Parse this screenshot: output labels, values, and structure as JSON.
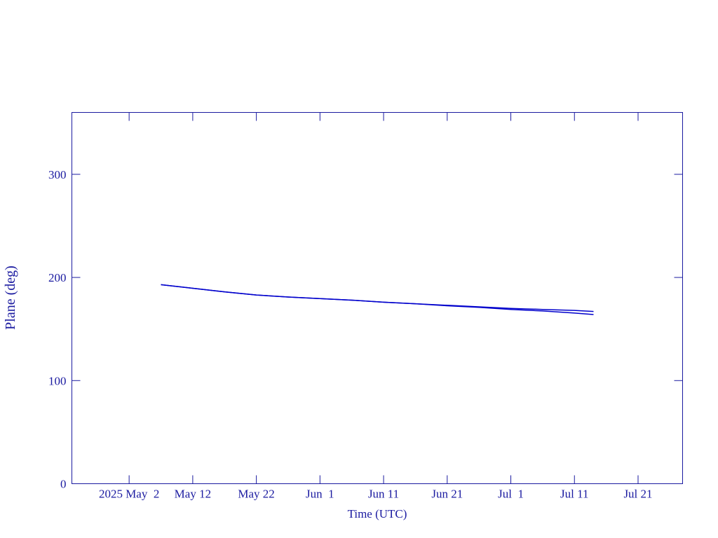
{
  "chart_data": {
    "type": "line",
    "xlabel": "Time (UTC)",
    "ylabel": "Plane (deg)",
    "x": [
      "2025-05-07",
      "2025-05-12",
      "2025-05-17",
      "2025-05-22",
      "2025-05-27",
      "2025-06-01",
      "2025-06-06",
      "2025-06-11",
      "2025-06-16",
      "2025-06-21",
      "2025-06-26",
      "2025-07-01",
      "2025-07-06",
      "2025-07-11",
      "2025-07-14"
    ],
    "series": [
      {
        "color": "#0000cc",
        "values": [
          193,
          189.5,
          186,
          183,
          181,
          179.5,
          178,
          176,
          174.5,
          173,
          171.5,
          170,
          169,
          168,
          167
        ]
      },
      {
        "color": "#0000cc",
        "values": [
          193,
          189.5,
          186,
          183,
          181,
          179.5,
          178,
          176,
          174.5,
          172.5,
          171,
          169,
          167.5,
          165.5,
          164
        ]
      }
    ],
    "xlim": [
      "2025-04-23",
      "2025-07-28"
    ],
    "xticks": [
      {
        "value": "2025-05-02",
        "label": "2025 May  2"
      },
      {
        "value": "2025-05-12",
        "label": "May 12"
      },
      {
        "value": "2025-05-22",
        "label": "May 22"
      },
      {
        "value": "2025-06-01",
        "label": "Jun  1"
      },
      {
        "value": "2025-06-11",
        "label": "Jun 11"
      },
      {
        "value": "2025-06-21",
        "label": "Jun 21"
      },
      {
        "value": "2025-07-01",
        "label": "Jul  1"
      },
      {
        "value": "2025-07-11",
        "label": "Jul 11"
      },
      {
        "value": "2025-07-21",
        "label": "Jul 21"
      }
    ],
    "ylim": [
      0,
      360
    ],
    "yticks": [
      0,
      100,
      200,
      300
    ]
  }
}
